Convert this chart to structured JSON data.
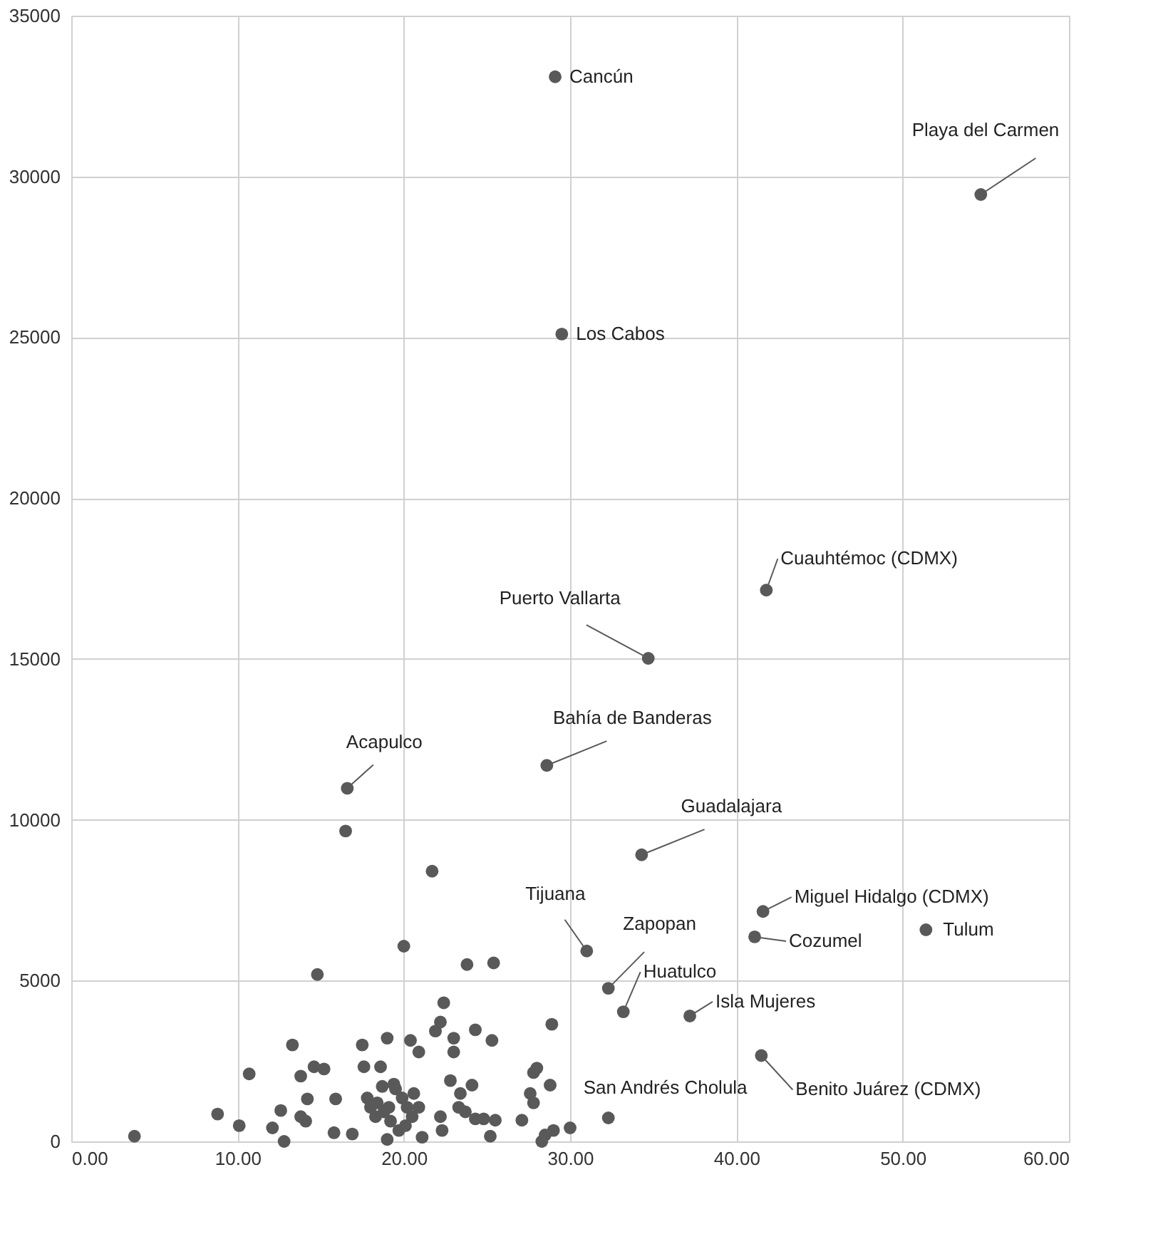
{
  "chart_data": {
    "type": "scatter",
    "x": [
      29.1,
      54.7,
      29.5,
      41.8,
      34.7,
      28.6,
      16.6,
      16.5,
      34.3,
      21.7,
      41.6,
      41.1,
      51.4,
      20.0,
      31.0,
      32.3,
      33.2,
      37.2,
      32.3,
      41.5,
      23.8,
      25.4,
      14.8,
      13.3,
      17.5,
      10.7,
      13.8,
      14.6,
      15.2,
      17.6,
      14.2,
      15.9,
      13.8,
      14.1,
      12.6,
      8.8,
      10.1,
      12.1,
      12.8,
      15.8,
      16.9,
      3.8,
      17.8,
      18.0,
      19.0,
      20.4,
      20.9,
      21.9,
      22.2,
      22.4,
      23.0,
      23.0,
      24.3,
      25.3,
      28.9,
      18.6,
      19.4,
      22.8,
      24.1,
      23.4,
      28.0,
      27.8,
      28.8,
      27.6,
      27.8,
      18.4,
      18.8,
      19.2,
      19.7,
      20.1,
      20.5,
      20.9,
      20.6,
      19.9,
      19.5,
      18.7,
      18.3,
      19.0,
      21.1,
      20.2,
      19.1,
      22.2,
      22.3,
      23.3,
      23.7,
      24.3,
      24.8,
      25.5,
      25.2,
      27.1,
      28.3,
      29.0,
      30.0,
      28.5
    ],
    "series": [
      {
        "color": "#595959",
        "values": [
          33100,
          29440,
          25100,
          17140,
          15020,
          11690,
          10980,
          9650,
          8910,
          8400,
          7150,
          6360,
          6580,
          6070,
          5920,
          4760,
          4030,
          3900,
          730,
          2670,
          5500,
          5550,
          5190,
          3000,
          3000,
          2100,
          2030,
          2320,
          2250,
          2320,
          1320,
          1320,
          770,
          630,
          960,
          850,
          490,
          420,
          0,
          270,
          230,
          160,
          1350,
          1060,
          3210,
          3140,
          2780,
          3430,
          3710,
          4310,
          3210,
          2780,
          3470,
          3140,
          3640,
          2320,
          1780,
          1890,
          1750,
          1490,
          2280,
          2140,
          1750,
          1490,
          1200,
          1200,
          920,
          630,
          340,
          490,
          770,
          1060,
          1490,
          1350,
          1630,
          1710,
          770,
          60,
          130,
          1060,
          1060,
          770,
          340,
          1060,
          920,
          700,
          700,
          660,
          160,
          660,
          0,
          340,
          420,
          200
        ]
      }
    ],
    "marker": "circle",
    "xlim": [
      0,
      60
    ],
    "xticks": [
      {
        "value": 0,
        "label": "0.00"
      },
      {
        "value": 10,
        "label": "10.00"
      },
      {
        "value": 20,
        "label": "20.00"
      },
      {
        "value": 30,
        "label": "30.00"
      },
      {
        "value": 40,
        "label": "40.00"
      },
      {
        "value": 50,
        "label": "50.00"
      },
      {
        "value": 60,
        "label": "60.00"
      }
    ],
    "ylim": [
      0,
      35000
    ],
    "yticks": [
      0,
      5000,
      10000,
      15000,
      20000,
      25000,
      30000,
      35000
    ],
    "grid": true,
    "annotations": [
      {
        "text": "Cancún",
        "x": 29.1,
        "y": 33100
      },
      {
        "text": "Playa del Carmen",
        "x": 54.7,
        "y": 29440
      },
      {
        "text": "Los Cabos",
        "x": 29.5,
        "y": 25100
      },
      {
        "text": "Cuauhtémoc (CDMX)",
        "x": 41.8,
        "y": 17140
      },
      {
        "text": "Puerto Vallarta",
        "x": 34.7,
        "y": 15020
      },
      {
        "text": "Bahía de Banderas",
        "x": 28.6,
        "y": 11690
      },
      {
        "text": "Acapulco",
        "x": 16.6,
        "y": 10980
      },
      {
        "text": "Guadalajara",
        "x": 34.3,
        "y": 8910
      },
      {
        "text": "Tijuana",
        "x": 31.0,
        "y": 5920
      },
      {
        "text": "Zapopan",
        "x": 32.3,
        "y": 4760
      },
      {
        "text": "Huatulco",
        "x": 33.2,
        "y": 4030
      },
      {
        "text": "Isla Mujeres",
        "x": 37.2,
        "y": 3900
      },
      {
        "text": "San Andrés Cholula",
        "x": 32.3,
        "y": 730
      },
      {
        "text": "Miguel Hidalgo (CDMX)",
        "x": 41.6,
        "y": 7150
      },
      {
        "text": "Cozumel",
        "x": 41.1,
        "y": 6360
      },
      {
        "text": "Tulum",
        "x": 51.4,
        "y": 6580
      },
      {
        "text": "Benito Juárez (CDMX)",
        "x": 41.5,
        "y": 2670
      }
    ]
  }
}
